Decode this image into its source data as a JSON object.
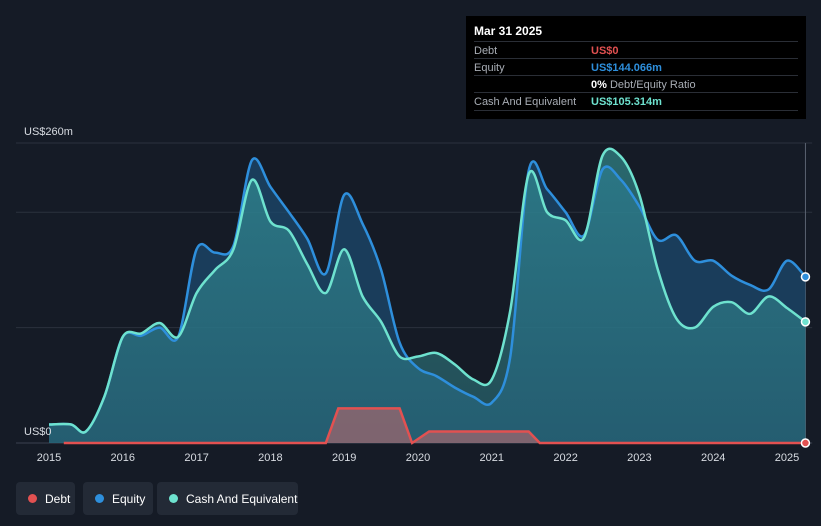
{
  "tooltip": {
    "date": "Mar 31 2025",
    "rows": [
      {
        "label": "Debt",
        "value": "US$0",
        "color": "#e25151"
      },
      {
        "label": "Equity",
        "value": "US$144.066m",
        "color": "#2e8fdc"
      },
      {
        "label": "",
        "value": "0%",
        "sub": " Debt/Equity Ratio",
        "color": "#ffffff"
      },
      {
        "label": "Cash And Equivalent",
        "value": "US$105.314m",
        "color": "#6ee2cf"
      }
    ]
  },
  "legend": [
    {
      "label": "Debt",
      "color": "#e25151"
    },
    {
      "label": "Equity",
      "color": "#2e8fdc"
    },
    {
      "label": "Cash And Equivalent",
      "color": "#6ee2cf"
    }
  ],
  "chart_data": {
    "type": "area",
    "y_top_label": "US$260m",
    "y_zero_label": "US$0",
    "ylim": [
      0,
      260
    ],
    "xlim": [
      2015,
      2025.3
    ],
    "x_ticks": [
      "2015",
      "2016",
      "2017",
      "2018",
      "2019",
      "2020",
      "2021",
      "2022",
      "2023",
      "2024",
      "2025"
    ],
    "grid": true,
    "series": [
      {
        "name": "Cash And Equivalent",
        "color": "#6ee2cf",
        "points": [
          [
            2015.0,
            16
          ],
          [
            2015.3,
            16
          ],
          [
            2015.5,
            10
          ],
          [
            2015.75,
            40
          ],
          [
            2016.0,
            92
          ],
          [
            2016.25,
            95
          ],
          [
            2016.5,
            104
          ],
          [
            2016.75,
            92
          ],
          [
            2017.0,
            130
          ],
          [
            2017.25,
            150
          ],
          [
            2017.5,
            168
          ],
          [
            2017.75,
            228
          ],
          [
            2018.0,
            192
          ],
          [
            2018.25,
            184
          ],
          [
            2018.5,
            155
          ],
          [
            2018.75,
            130
          ],
          [
            2019.0,
            168
          ],
          [
            2019.25,
            127
          ],
          [
            2019.5,
            105
          ],
          [
            2019.75,
            75
          ],
          [
            2020.0,
            75
          ],
          [
            2020.25,
            78
          ],
          [
            2020.5,
            68
          ],
          [
            2020.75,
            55
          ],
          [
            2021.0,
            55
          ],
          [
            2021.25,
            115
          ],
          [
            2021.5,
            233
          ],
          [
            2021.75,
            200
          ],
          [
            2022.0,
            193
          ],
          [
            2022.25,
            178
          ],
          [
            2022.5,
            249
          ],
          [
            2022.75,
            248
          ],
          [
            2023.0,
            215
          ],
          [
            2023.25,
            150
          ],
          [
            2023.5,
            108
          ],
          [
            2023.75,
            100
          ],
          [
            2024.0,
            118
          ],
          [
            2024.25,
            122
          ],
          [
            2024.5,
            112
          ],
          [
            2024.75,
            127
          ],
          [
            2025.0,
            117
          ],
          [
            2025.25,
            105
          ]
        ]
      },
      {
        "name": "Equity",
        "color": "#2e8fdc",
        "points": [
          [
            2015.0,
            16
          ],
          [
            2015.3,
            16
          ],
          [
            2015.5,
            10
          ],
          [
            2015.75,
            40
          ],
          [
            2016.0,
            92
          ],
          [
            2016.25,
            93
          ],
          [
            2016.5,
            100
          ],
          [
            2016.75,
            92
          ],
          [
            2017.0,
            168
          ],
          [
            2017.25,
            165
          ],
          [
            2017.5,
            171
          ],
          [
            2017.75,
            245
          ],
          [
            2018.0,
            222
          ],
          [
            2018.25,
            200
          ],
          [
            2018.5,
            177
          ],
          [
            2018.75,
            147
          ],
          [
            2019.0,
            215
          ],
          [
            2019.25,
            190
          ],
          [
            2019.5,
            150
          ],
          [
            2019.75,
            87
          ],
          [
            2020.0,
            65
          ],
          [
            2020.25,
            58
          ],
          [
            2020.5,
            48
          ],
          [
            2020.75,
            40
          ],
          [
            2021.0,
            35
          ],
          [
            2021.25,
            75
          ],
          [
            2021.5,
            236
          ],
          [
            2021.75,
            220
          ],
          [
            2022.0,
            200
          ],
          [
            2022.25,
            180
          ],
          [
            2022.5,
            237
          ],
          [
            2022.75,
            228
          ],
          [
            2023.0,
            205
          ],
          [
            2023.25,
            176
          ],
          [
            2023.5,
            180
          ],
          [
            2023.75,
            158
          ],
          [
            2024.0,
            158
          ],
          [
            2024.25,
            145
          ],
          [
            2024.5,
            137
          ],
          [
            2024.75,
            133
          ],
          [
            2025.0,
            158
          ],
          [
            2025.25,
            144
          ]
        ]
      },
      {
        "name": "Debt",
        "color": "#e25151",
        "points": [
          [
            2015.2,
            0
          ],
          [
            2018.75,
            0
          ],
          [
            2018.92,
            30
          ],
          [
            2019.75,
            30
          ],
          [
            2019.92,
            0
          ],
          [
            2020.15,
            10
          ],
          [
            2021.5,
            10
          ],
          [
            2021.65,
            0
          ],
          [
            2025.25,
            0
          ]
        ]
      }
    ]
  }
}
